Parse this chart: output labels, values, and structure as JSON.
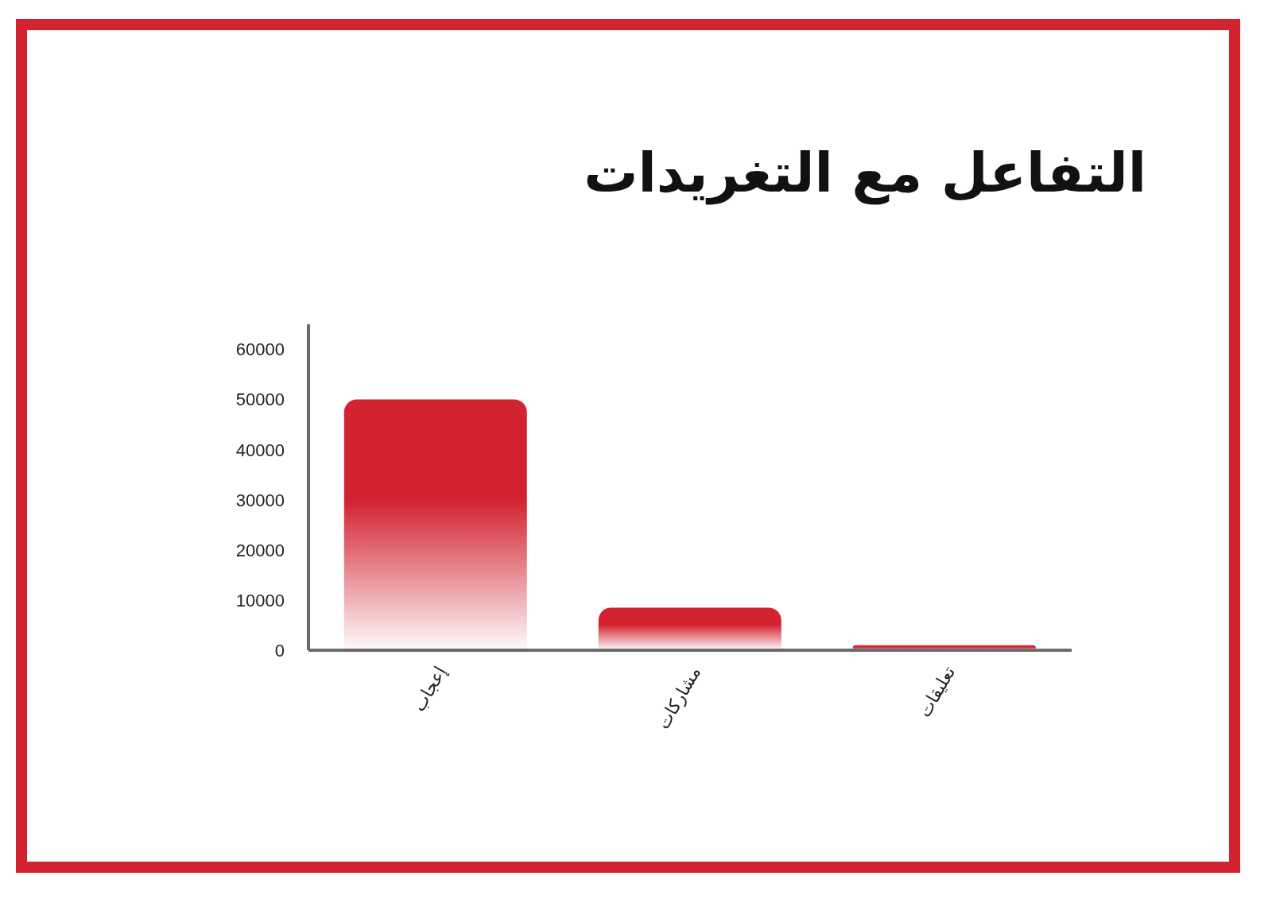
{
  "chart_data": {
    "type": "bar",
    "title": "التفاعل مع التغريدات",
    "categories": [
      "إعجاب",
      "مشاركات",
      "تعليقات"
    ],
    "values": [
      50000,
      8500,
      1000
    ],
    "color": "#d32230",
    "ylim": [
      0,
      65000
    ],
    "yticks": [
      0,
      10000,
      20000,
      30000,
      40000,
      50000,
      60000
    ]
  }
}
